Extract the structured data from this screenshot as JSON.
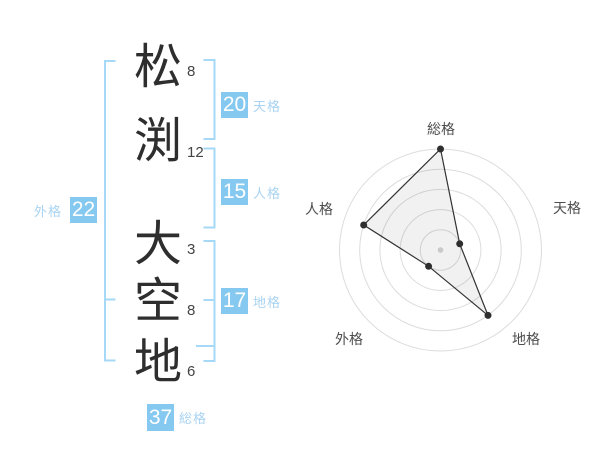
{
  "name_panel": {
    "characters": [
      {
        "char": "松",
        "strokes": "8",
        "part": "surname"
      },
      {
        "char": "渕",
        "strokes": "12",
        "part": "surname"
      },
      {
        "char": "大",
        "strokes": "3",
        "part": "given"
      },
      {
        "char": "空",
        "strokes": "8",
        "part": "given"
      },
      {
        "char": "地",
        "strokes": "6",
        "part": "given"
      }
    ],
    "badges": {
      "tenkaku": {
        "label": "天格",
        "value": "20"
      },
      "jinkaku": {
        "label": "人格",
        "value": "15"
      },
      "chikaku": {
        "label": "地格",
        "value": "17"
      },
      "gaikaku": {
        "label": "外格",
        "value": "22"
      },
      "soukaku": {
        "label": "総格",
        "value": "37"
      }
    }
  },
  "chart_data": {
    "type": "radar",
    "categories": [
      "総格",
      "天格",
      "地格",
      "外格",
      "人格"
    ],
    "series": [
      {
        "values": [
          5,
          1,
          4,
          1,
          4
        ]
      }
    ],
    "rlim": [
      0,
      5
    ],
    "rings": 5,
    "grid": true,
    "legend": false,
    "category_stroke_totals": {
      "総格": 37,
      "天格": 20,
      "地格": 17,
      "外格": 22,
      "人格": 15
    }
  },
  "colors": {
    "badge_background": "#85c8f0",
    "bracket_line": "#a6d8f8",
    "badge_label_text": "#a8d3f2",
    "kanji_text": "#2e2e2e",
    "radar_grid": "#dcdcdc",
    "radar_polygon_stroke": "#333333",
    "radar_point": "#2f2f2f",
    "radar_center_dot": "#c9c9c9",
    "radar_label_text": "#4d4d4d"
  }
}
